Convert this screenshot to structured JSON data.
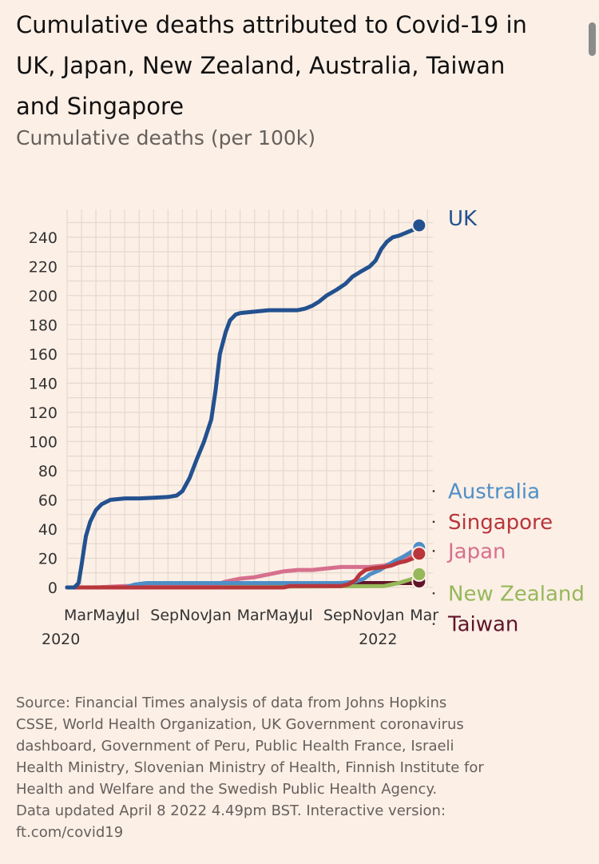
{
  "title_lines": [
    "Cumulative deaths attributed to Covid-19 in",
    "UK, Japan, New Zealand, Australia, Taiwan",
    "and Singapore"
  ],
  "subtitle": "Cumulative deaths (per 100k)",
  "source_lines": [
    "Source: Financial Times analysis of data from Johns Hopkins",
    "CSSE, World Health Organization, UK Government coronavirus",
    "dashboard, Government of Peru, Public Health France, Israeli",
    "Health Ministry, Slovenian Ministry of Health, Finnish Institute for",
    "Health and Welfare and the Swedish Public Health Agency.",
    "Data updated April 8 2022 4.49pm BST. Interactive version:",
    "ft.com/covid19"
  ],
  "chart_data": {
    "type": "line",
    "title": "Cumulative deaths attributed to Covid-19 in UK, Japan, New Zealand, Australia, Taiwan and Singapore",
    "ylabel": "Cumulative deaths (per 100k)",
    "xlabel": "",
    "ylim": [
      0,
      250
    ],
    "yticks": [
      0,
      20,
      40,
      60,
      80,
      100,
      120,
      140,
      160,
      180,
      200,
      220,
      240
    ],
    "xlim": [
      0,
      25.3
    ],
    "xticks": [
      {
        "value": 0,
        "label": "Mar"
      },
      {
        "value": 2,
        "label": "May"
      },
      {
        "value": 4,
        "label": "Jul"
      },
      {
        "value": 6,
        "label": "Sep"
      },
      {
        "value": 8,
        "label": "Nov"
      },
      {
        "value": 10,
        "label": "Jan"
      },
      {
        "value": 12,
        "label": "Mar"
      },
      {
        "value": 14,
        "label": "May"
      },
      {
        "value": 16,
        "label": "Jul"
      },
      {
        "value": 18,
        "label": "Sep"
      },
      {
        "value": 20,
        "label": "Nov"
      },
      {
        "value": 22,
        "label": "Jan"
      },
      {
        "value": 24,
        "label": "Mar"
      }
    ],
    "year_labels": [
      {
        "value": 0,
        "label": "2020"
      },
      {
        "value": 22,
        "label": "2022"
      }
    ],
    "x_unit": "months since 1 March 2020",
    "series": [
      {
        "name": "UK",
        "color": "#23518f",
        "points": [
          [
            0,
            0
          ],
          [
            0.3,
            0
          ],
          [
            0.5,
            0
          ],
          [
            0.8,
            3
          ],
          [
            1,
            15
          ],
          [
            1.3,
            35
          ],
          [
            1.6,
            45
          ],
          [
            2,
            53
          ],
          [
            2.4,
            57
          ],
          [
            3,
            60
          ],
          [
            4,
            61
          ],
          [
            5,
            61
          ],
          [
            6,
            61.5
          ],
          [
            7,
            62
          ],
          [
            7.6,
            63
          ],
          [
            8,
            66
          ],
          [
            8.5,
            75
          ],
          [
            9,
            88
          ],
          [
            9.5,
            100
          ],
          [
            10,
            115
          ],
          [
            10.3,
            135
          ],
          [
            10.6,
            160
          ],
          [
            11,
            175
          ],
          [
            11.3,
            183
          ],
          [
            11.7,
            187
          ],
          [
            12,
            188
          ],
          [
            13,
            189
          ],
          [
            14,
            190
          ],
          [
            15,
            190
          ],
          [
            16,
            190
          ],
          [
            16.5,
            191
          ],
          [
            17,
            193
          ],
          [
            17.5,
            196
          ],
          [
            18,
            200
          ],
          [
            18.7,
            204
          ],
          [
            19.3,
            208
          ],
          [
            19.8,
            213
          ],
          [
            20.3,
            216
          ],
          [
            21,
            220
          ],
          [
            21.4,
            224
          ],
          [
            21.8,
            232
          ],
          [
            22.2,
            237
          ],
          [
            22.6,
            240
          ],
          [
            23,
            241
          ],
          [
            23.5,
            243
          ],
          [
            24,
            245
          ],
          [
            24.2,
            247
          ]
        ],
        "label_value": 253
      },
      {
        "name": "Australia",
        "color": "#4e8fc7",
        "points": [
          [
            0,
            0
          ],
          [
            4,
            0
          ],
          [
            4.7,
            2
          ],
          [
            5.5,
            3
          ],
          [
            10,
            3
          ],
          [
            15,
            3
          ],
          [
            19,
            3
          ],
          [
            20,
            4
          ],
          [
            20.6,
            6
          ],
          [
            21,
            9
          ],
          [
            21.7,
            12
          ],
          [
            22.2,
            15
          ],
          [
            22.7,
            18
          ],
          [
            23.3,
            21
          ],
          [
            23.8,
            24
          ],
          [
            24.2,
            26
          ]
        ],
        "label_value": 66
      },
      {
        "name": "Singapore",
        "color": "#b8363c",
        "points": [
          [
            0,
            0
          ],
          [
            15,
            0
          ],
          [
            15.5,
            1
          ],
          [
            19,
            1
          ],
          [
            19.5,
            2
          ],
          [
            20,
            5
          ],
          [
            20.3,
            9
          ],
          [
            20.7,
            12
          ],
          [
            21.1,
            13
          ],
          [
            22,
            14
          ],
          [
            22.5,
            15
          ],
          [
            23,
            17
          ],
          [
            23.5,
            18
          ],
          [
            24,
            20
          ],
          [
            24.2,
            22
          ]
        ],
        "label_value": 45
      },
      {
        "name": "Japan",
        "color": "#d6708d",
        "points": [
          [
            0,
            0
          ],
          [
            2,
            0
          ],
          [
            4,
            1
          ],
          [
            6,
            1
          ],
          [
            8,
            1
          ],
          [
            10,
            1
          ],
          [
            11,
            4
          ],
          [
            12,
            6
          ],
          [
            13,
            7
          ],
          [
            14,
            9
          ],
          [
            15,
            11
          ],
          [
            16,
            12
          ],
          [
            17,
            12
          ],
          [
            18,
            13
          ],
          [
            19,
            14
          ],
          [
            20,
            14
          ],
          [
            21,
            14
          ],
          [
            22,
            15
          ],
          [
            23,
            18
          ],
          [
            24,
            22
          ],
          [
            24.2,
            23
          ]
        ],
        "label_value": 25
      },
      {
        "name": "New Zealand",
        "color": "#96b85a",
        "points": [
          [
            0,
            0
          ],
          [
            12,
            0.5
          ],
          [
            22,
            1
          ],
          [
            23,
            3
          ],
          [
            24,
            6
          ],
          [
            24.2,
            8
          ]
        ],
        "label_value": -4
      },
      {
        "name": "Taiwan",
        "color": "#601529",
        "points": [
          [
            0,
            0
          ],
          [
            14,
            0
          ],
          [
            15,
            0.5
          ],
          [
            16,
            2
          ],
          [
            17,
            3
          ],
          [
            18,
            3
          ],
          [
            22,
            3
          ],
          [
            24,
            3
          ],
          [
            24.2,
            3
          ]
        ],
        "label_value": -25
      }
    ]
  }
}
